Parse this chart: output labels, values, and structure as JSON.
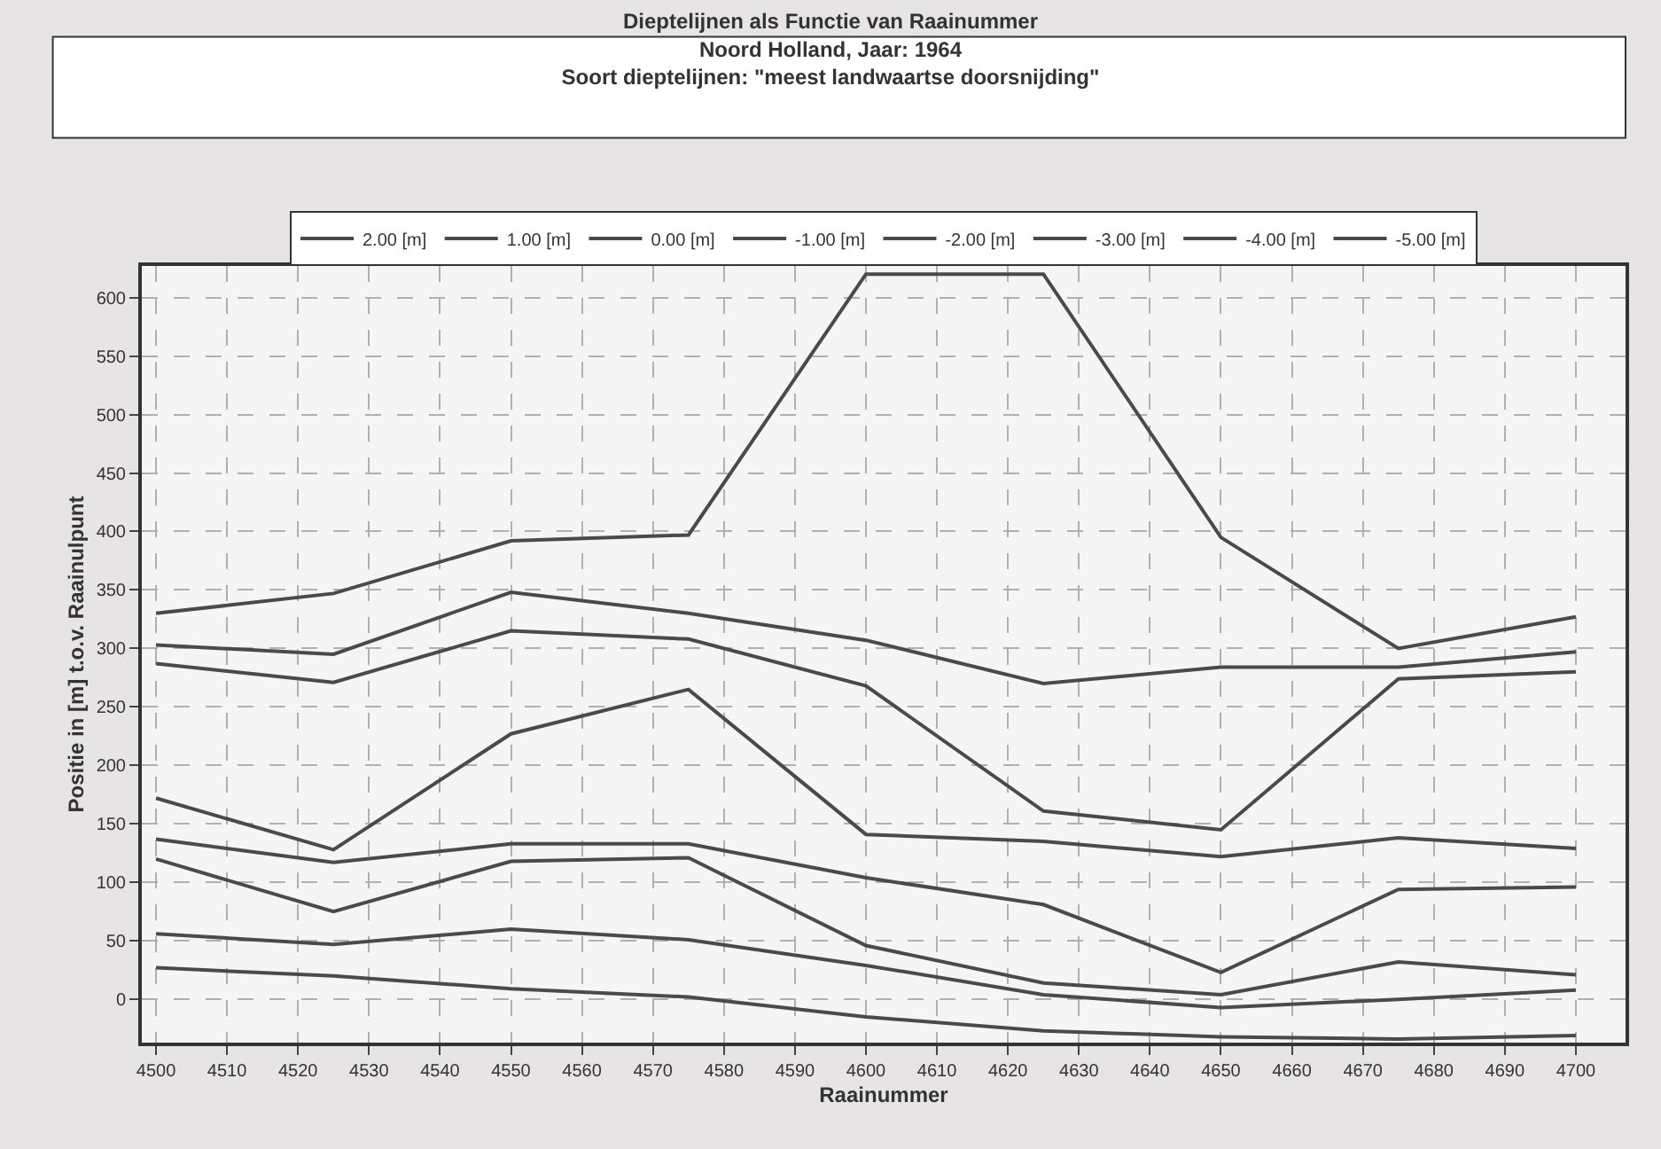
{
  "chart_data": {
    "type": "line",
    "title": "Dieptelijnen als Functie van Raainummer\nNoord Holland, Jaar: 1964\nSoort dieptelijnen: \"meest landwaartse doorsnijding\"",
    "xlabel": "Raainummer",
    "ylabel": "Positie in [m] t.o.v. Raainulpunt",
    "x": [
      4500,
      4525,
      4550,
      4575,
      4600,
      4625,
      4650,
      4675,
      4700
    ],
    "series": [
      {
        "name": "2.00 [m]",
        "color": "#4a4a4a",
        "values": [
          27,
          20,
          9,
          2,
          -15,
          -27,
          -32,
          -34,
          -31
        ]
      },
      {
        "name": "1.00 [m]",
        "color": "#4a4a4a",
        "values": [
          56,
          47,
          60,
          51,
          29,
          4,
          -7,
          0,
          8
        ]
      },
      {
        "name": "0.00 [m]",
        "color": "#4a4a4a",
        "values": [
          120,
          75,
          118,
          121,
          46,
          14,
          4,
          32,
          21
        ]
      },
      {
        "name": "-1.00 [m]",
        "color": "#4a4a4a",
        "values": [
          137,
          117,
          133,
          133,
          104,
          81,
          23,
          94,
          96
        ]
      },
      {
        "name": "-2.00 [m]",
        "color": "#4a4a4a",
        "values": [
          172,
          128,
          227,
          265,
          141,
          135,
          122,
          138,
          129
        ]
      },
      {
        "name": "-3.00 [m]",
        "color": "#4a4a4a",
        "values": [
          287,
          271,
          315,
          308,
          268,
          161,
          145,
          274,
          280
        ]
      },
      {
        "name": "-4.00 [m]",
        "color": "#4a4a4a",
        "values": [
          303,
          295,
          348,
          330,
          307,
          270,
          284,
          284,
          297
        ]
      },
      {
        "name": "-5.00 [m]",
        "color": "#4a4a4a",
        "values": [
          330,
          347,
          392,
          397,
          620,
          620,
          395,
          300,
          327
        ]
      }
    ],
    "xlim": [
      4498,
      4707
    ],
    "ylim": [
      -37,
      627
    ],
    "xticks": [
      4500,
      4510,
      4520,
      4530,
      4540,
      4550,
      4560,
      4570,
      4580,
      4590,
      4600,
      4610,
      4620,
      4630,
      4640,
      4650,
      4660,
      4670,
      4680,
      4690,
      4700
    ],
    "yticks": [
      0,
      50,
      100,
      150,
      200,
      250,
      300,
      350,
      400,
      450,
      500,
      550,
      600
    ],
    "grid": true,
    "legend": "top",
    "marker": "none",
    "line_style": "solid"
  }
}
